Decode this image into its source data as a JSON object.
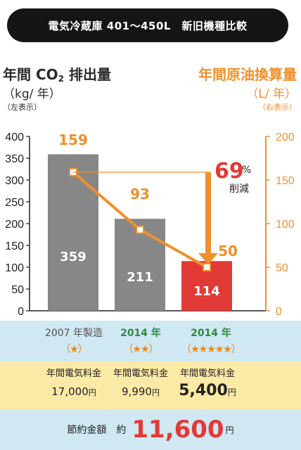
{
  "header": {
    "title": "電気冷蔵庫 401〜450L　新旧機種比較"
  },
  "left_axis": {
    "title_main": "年間 CO",
    "title_sub": "2",
    "title_tail": " 排出量",
    "unit": "（kg/ 年）",
    "note": "（左表示）"
  },
  "right_axis": {
    "title": "年間原油換算量",
    "unit": "（L/ 年）",
    "note": "（右表示）"
  },
  "chart_data": {
    "type": "bar",
    "categories": [
      "2007 年製造",
      "2014 年",
      "2014 年"
    ],
    "series": [
      {
        "name": "年間 CO2 排出量",
        "values": [
          359,
          211,
          114
        ],
        "axis": "left",
        "colors": [
          "#878787",
          "#878787",
          "#e23a36"
        ]
      },
      {
        "name": "年間原油換算量",
        "values": [
          159,
          93,
          50
        ],
        "axis": "right",
        "type": "line",
        "color": "#f0902a"
      }
    ],
    "left_ticks": [
      "0",
      "50",
      "100",
      "150",
      "200",
      "250",
      "300",
      "350",
      "400"
    ],
    "right_ticks": [
      "0",
      "50",
      "100",
      "150",
      "200"
    ],
    "ylim_left": [
      0,
      400
    ],
    "ylim_right": [
      0,
      200
    ],
    "annotation": {
      "value": "69",
      "unit": "%",
      "text": "削減"
    }
  },
  "rows": {
    "years": [
      {
        "year": "2007 年製造",
        "stars": "（★）"
      },
      {
        "year": "2014 年",
        "stars": "（★★）"
      },
      {
        "year": "2014 年",
        "stars": "（★★★★★）"
      }
    ],
    "cost_label": "年間電気料金",
    "costs": [
      {
        "value": "17,000",
        "unit": "円"
      },
      {
        "value": "9,990",
        "unit": "円"
      },
      {
        "value": "5,400",
        "unit": "円"
      }
    ],
    "saving_label": "節約金額",
    "saving_prefix": "約",
    "saving_amount": "11,600",
    "saving_unit": "円"
  },
  "colors": {
    "gray_bar": "#878787",
    "red_bar": "#e23a36",
    "orange": "#f0902a",
    "green": "#2f8a3e"
  }
}
